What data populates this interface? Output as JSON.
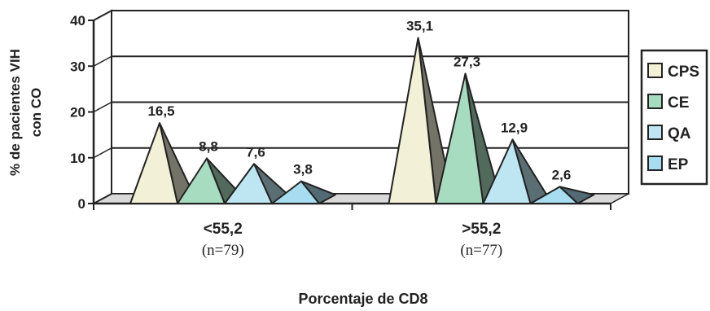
{
  "chart_data": {
    "type": "bar",
    "style": "3d-pyramid",
    "ylabel": "% de pacientes VIH con CO",
    "ylabel_lines": [
      "% de pacientes VIH",
      "con CO"
    ],
    "xlabel": "Porcentaje de CD8",
    "ylim": [
      0,
      40
    ],
    "yticks": [
      "0",
      "10",
      "20",
      "30",
      "40"
    ],
    "grid": true,
    "legend_position": "right",
    "categories": [
      "<55,2",
      ">55,2"
    ],
    "category_notes": [
      "(n=79)",
      "(n=77)"
    ],
    "series": [
      {
        "name": "CPS",
        "values": [
          16.5,
          35.1
        ],
        "labels": [
          "16,5",
          "35,1"
        ],
        "color": "#f2f0d6"
      },
      {
        "name": "CE",
        "values": [
          8.8,
          27.3
        ],
        "labels": [
          "8,8",
          "27,3"
        ],
        "color": "#a8dcc0"
      },
      {
        "name": "QA",
        "values": [
          7.6,
          12.9
        ],
        "labels": [
          "7,6",
          "12,9"
        ],
        "color": "#bde6f2"
      },
      {
        "name": "EP",
        "values": [
          3.8,
          2.6
        ],
        "labels": [
          "3,8",
          "2,6"
        ],
        "color": "#a8dcf0"
      }
    ]
  }
}
